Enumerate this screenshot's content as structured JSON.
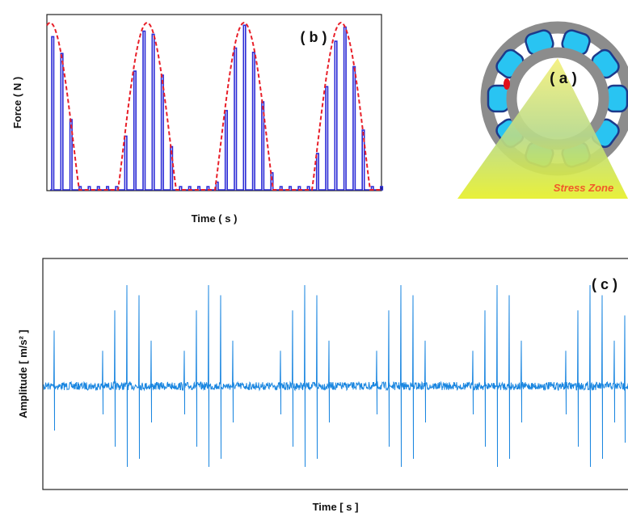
{
  "panels": {
    "a": {
      "label": "( a )",
      "annotation": "Stress Zone"
    },
    "b": {
      "label": "( b )",
      "y_axis": "Force  ( N )",
      "x_axis": "Time  ( s )"
    },
    "c": {
      "label": "( c )",
      "y_axis": "Amplitude  [ m/s² ]",
      "x_axis": "Time [ s ]"
    }
  }
}
